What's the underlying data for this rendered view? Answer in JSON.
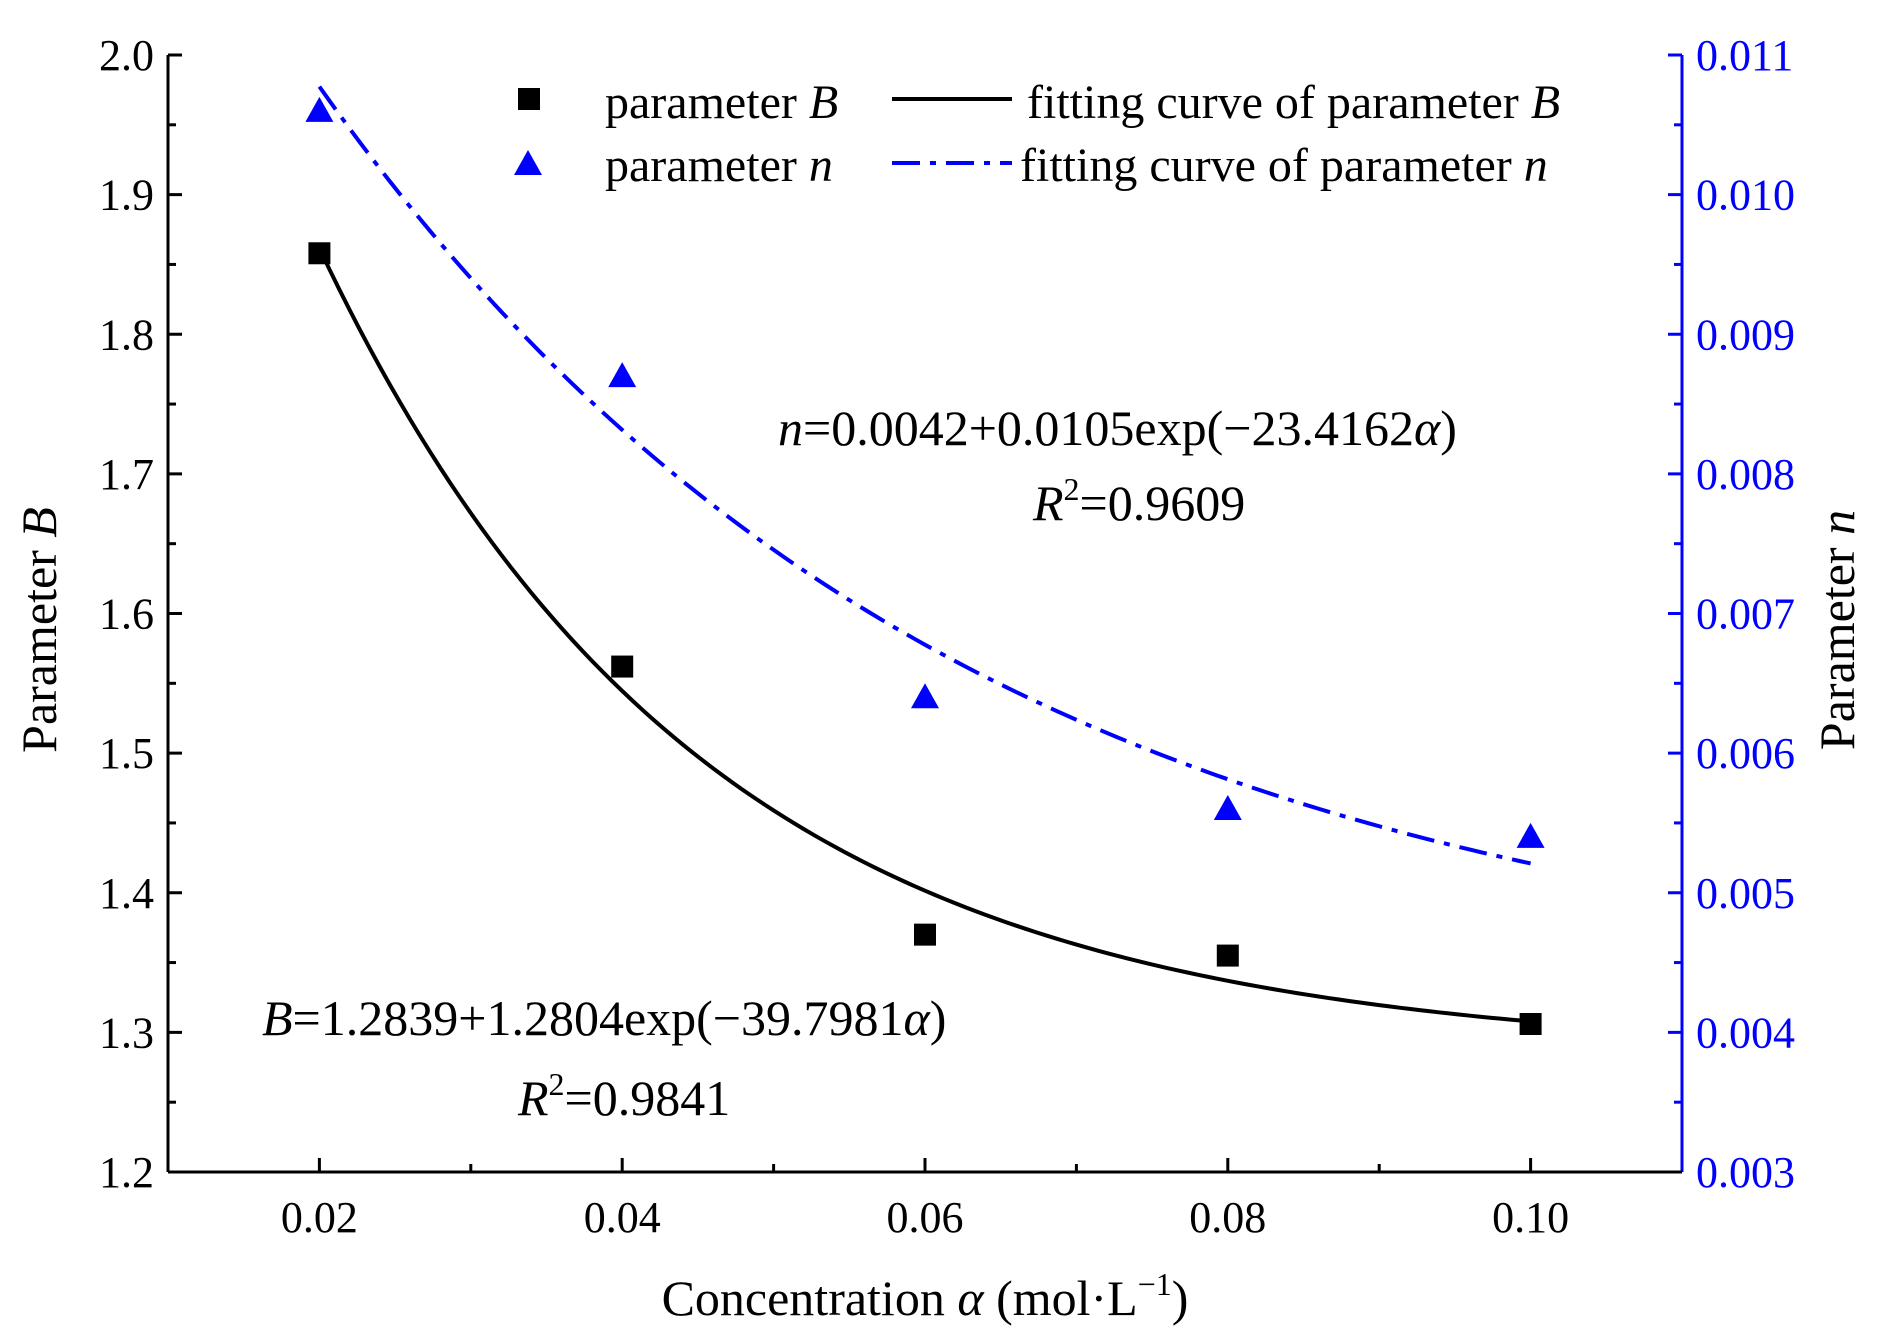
{
  "chart_data": {
    "type": "scatter",
    "x_axis": {
      "label_prefix": "Concentration ",
      "label_symbol": "α",
      "label_suffix": " (mol·L",
      "label_sup": "−1",
      "label_close": ")",
      "range": [
        0.01,
        0.11
      ],
      "ticks": [
        "0.02",
        "0.04",
        "0.06",
        "0.08",
        "0.10"
      ]
    },
    "y_axis_left": {
      "label_prefix": "Parameter ",
      "label_var": "B",
      "range": [
        1.2,
        2.0
      ],
      "ticks": [
        "1.2",
        "1.3",
        "1.4",
        "1.5",
        "1.6",
        "1.7",
        "1.8",
        "1.9",
        "2.0"
      ]
    },
    "y_axis_right": {
      "label_prefix": "Parameter ",
      "label_var": "n",
      "range": [
        0.003,
        0.011
      ],
      "ticks": [
        "0.003",
        "0.004",
        "0.005",
        "0.006",
        "0.007",
        "0.008",
        "0.009",
        "0.010",
        "0.011"
      ],
      "color": "#0000FF"
    },
    "series": [
      {
        "name": "parameter B",
        "axis": "left",
        "marker": "square",
        "color": "#000000",
        "x": [
          0.02,
          0.04,
          0.06,
          0.08,
          0.1
        ],
        "y": [
          1.858,
          1.562,
          1.37,
          1.355,
          1.306
        ]
      },
      {
        "name": "parameter n",
        "axis": "right",
        "marker": "triangle",
        "color": "#0000FF",
        "x": [
          0.02,
          0.04,
          0.06,
          0.08,
          0.1
        ],
        "y": [
          0.0106,
          0.0087,
          0.0064,
          0.0056,
          0.0054
        ]
      }
    ],
    "fits": [
      {
        "name": "fitting curve of parameter B",
        "axis": "left",
        "style": "solid",
        "color": "#000000",
        "a": 1.2839,
        "b": 1.2804,
        "c": -39.7981,
        "x_range": [
          0.02,
          0.1
        ]
      },
      {
        "name": "fitting curve of parameter n",
        "axis": "right",
        "style": "dash-dot",
        "color": "#0000FF",
        "a": 0.0042,
        "b": 0.0105,
        "c": -23.4162,
        "x_range": [
          0.02,
          0.1
        ]
      }
    ],
    "legend": {
      "position": "top-right",
      "items": [
        {
          "prefix": "parameter ",
          "var": "B"
        },
        {
          "prefix": "fitting curve of parameter ",
          "var": "B"
        },
        {
          "prefix": "parameter ",
          "var": "n"
        },
        {
          "prefix": "fitting curve of parameter ",
          "var": "n"
        }
      ]
    },
    "annotations": {
      "n_equation": {
        "var": "n",
        "body": "=0.0042+0.0105exp(−23.4162",
        "sym": "α",
        "close": ")"
      },
      "n_r2": {
        "var": "R",
        "sup": "2",
        "value": "=0.9609"
      },
      "b_equation": {
        "var": "B",
        "body": "=1.2839+1.2804exp(−39.7981",
        "sym": "α",
        "close": ")"
      },
      "b_r2": {
        "var": "R",
        "sup": "2",
        "value": "=0.9841"
      }
    }
  }
}
